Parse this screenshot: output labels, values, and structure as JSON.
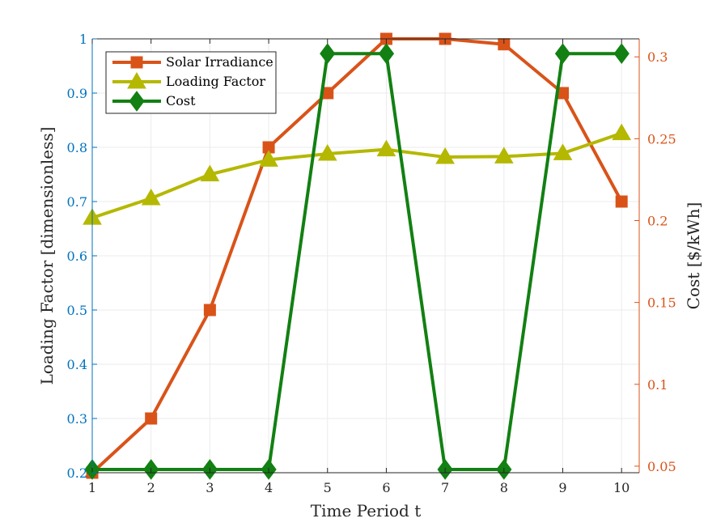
{
  "chart_data": {
    "type": "line",
    "xlabel": "Time Period t",
    "ylabel_left": "Loading Factor [dimensionless]",
    "ylabel_right": "Cost [$/kWh]",
    "x": [
      1,
      2,
      3,
      4,
      5,
      6,
      7,
      8,
      9,
      10
    ],
    "xlim": [
      1,
      10.3
    ],
    "ylim_left": [
      0.2,
      1.0
    ],
    "ylim_right": [
      0.046,
      0.311
    ],
    "x_ticks": [
      "1",
      "2",
      "3",
      "4",
      "5",
      "6",
      "7",
      "8",
      "9",
      "10"
    ],
    "y_left_ticks": [
      "0.2",
      "0.3",
      "0.4",
      "0.5",
      "0.6",
      "0.7",
      "0.8",
      "0.9",
      "1"
    ],
    "y_right_ticks": [
      "0.05",
      "0.1",
      "0.15",
      "0.2",
      "0.25",
      "0.3"
    ],
    "grid": true,
    "legend_position": "top-left",
    "series": [
      {
        "name": "Solar Irradiance",
        "axis": "left",
        "color": "#D95319",
        "marker": "square",
        "values": [
          0.2,
          0.3,
          0.5,
          0.8,
          0.9,
          1.0,
          1.0,
          0.99,
          0.9,
          0.7
        ]
      },
      {
        "name": "Loading Factor",
        "axis": "left",
        "color": "#B5B800",
        "marker": "triangle",
        "values": [
          0.67,
          0.706,
          0.75,
          0.777,
          0.788,
          0.796,
          0.782,
          0.783,
          0.789,
          0.826
        ]
      },
      {
        "name": "Cost",
        "axis": "right",
        "color": "#128012",
        "marker": "diamond",
        "values": [
          0.048,
          0.048,
          0.048,
          0.048,
          0.302,
          0.302,
          0.048,
          0.048,
          0.302,
          0.302
        ]
      }
    ],
    "colors": {
      "left_axis": "#0072BD",
      "right_axis": "#D95319",
      "x_axis": "#262626"
    }
  }
}
